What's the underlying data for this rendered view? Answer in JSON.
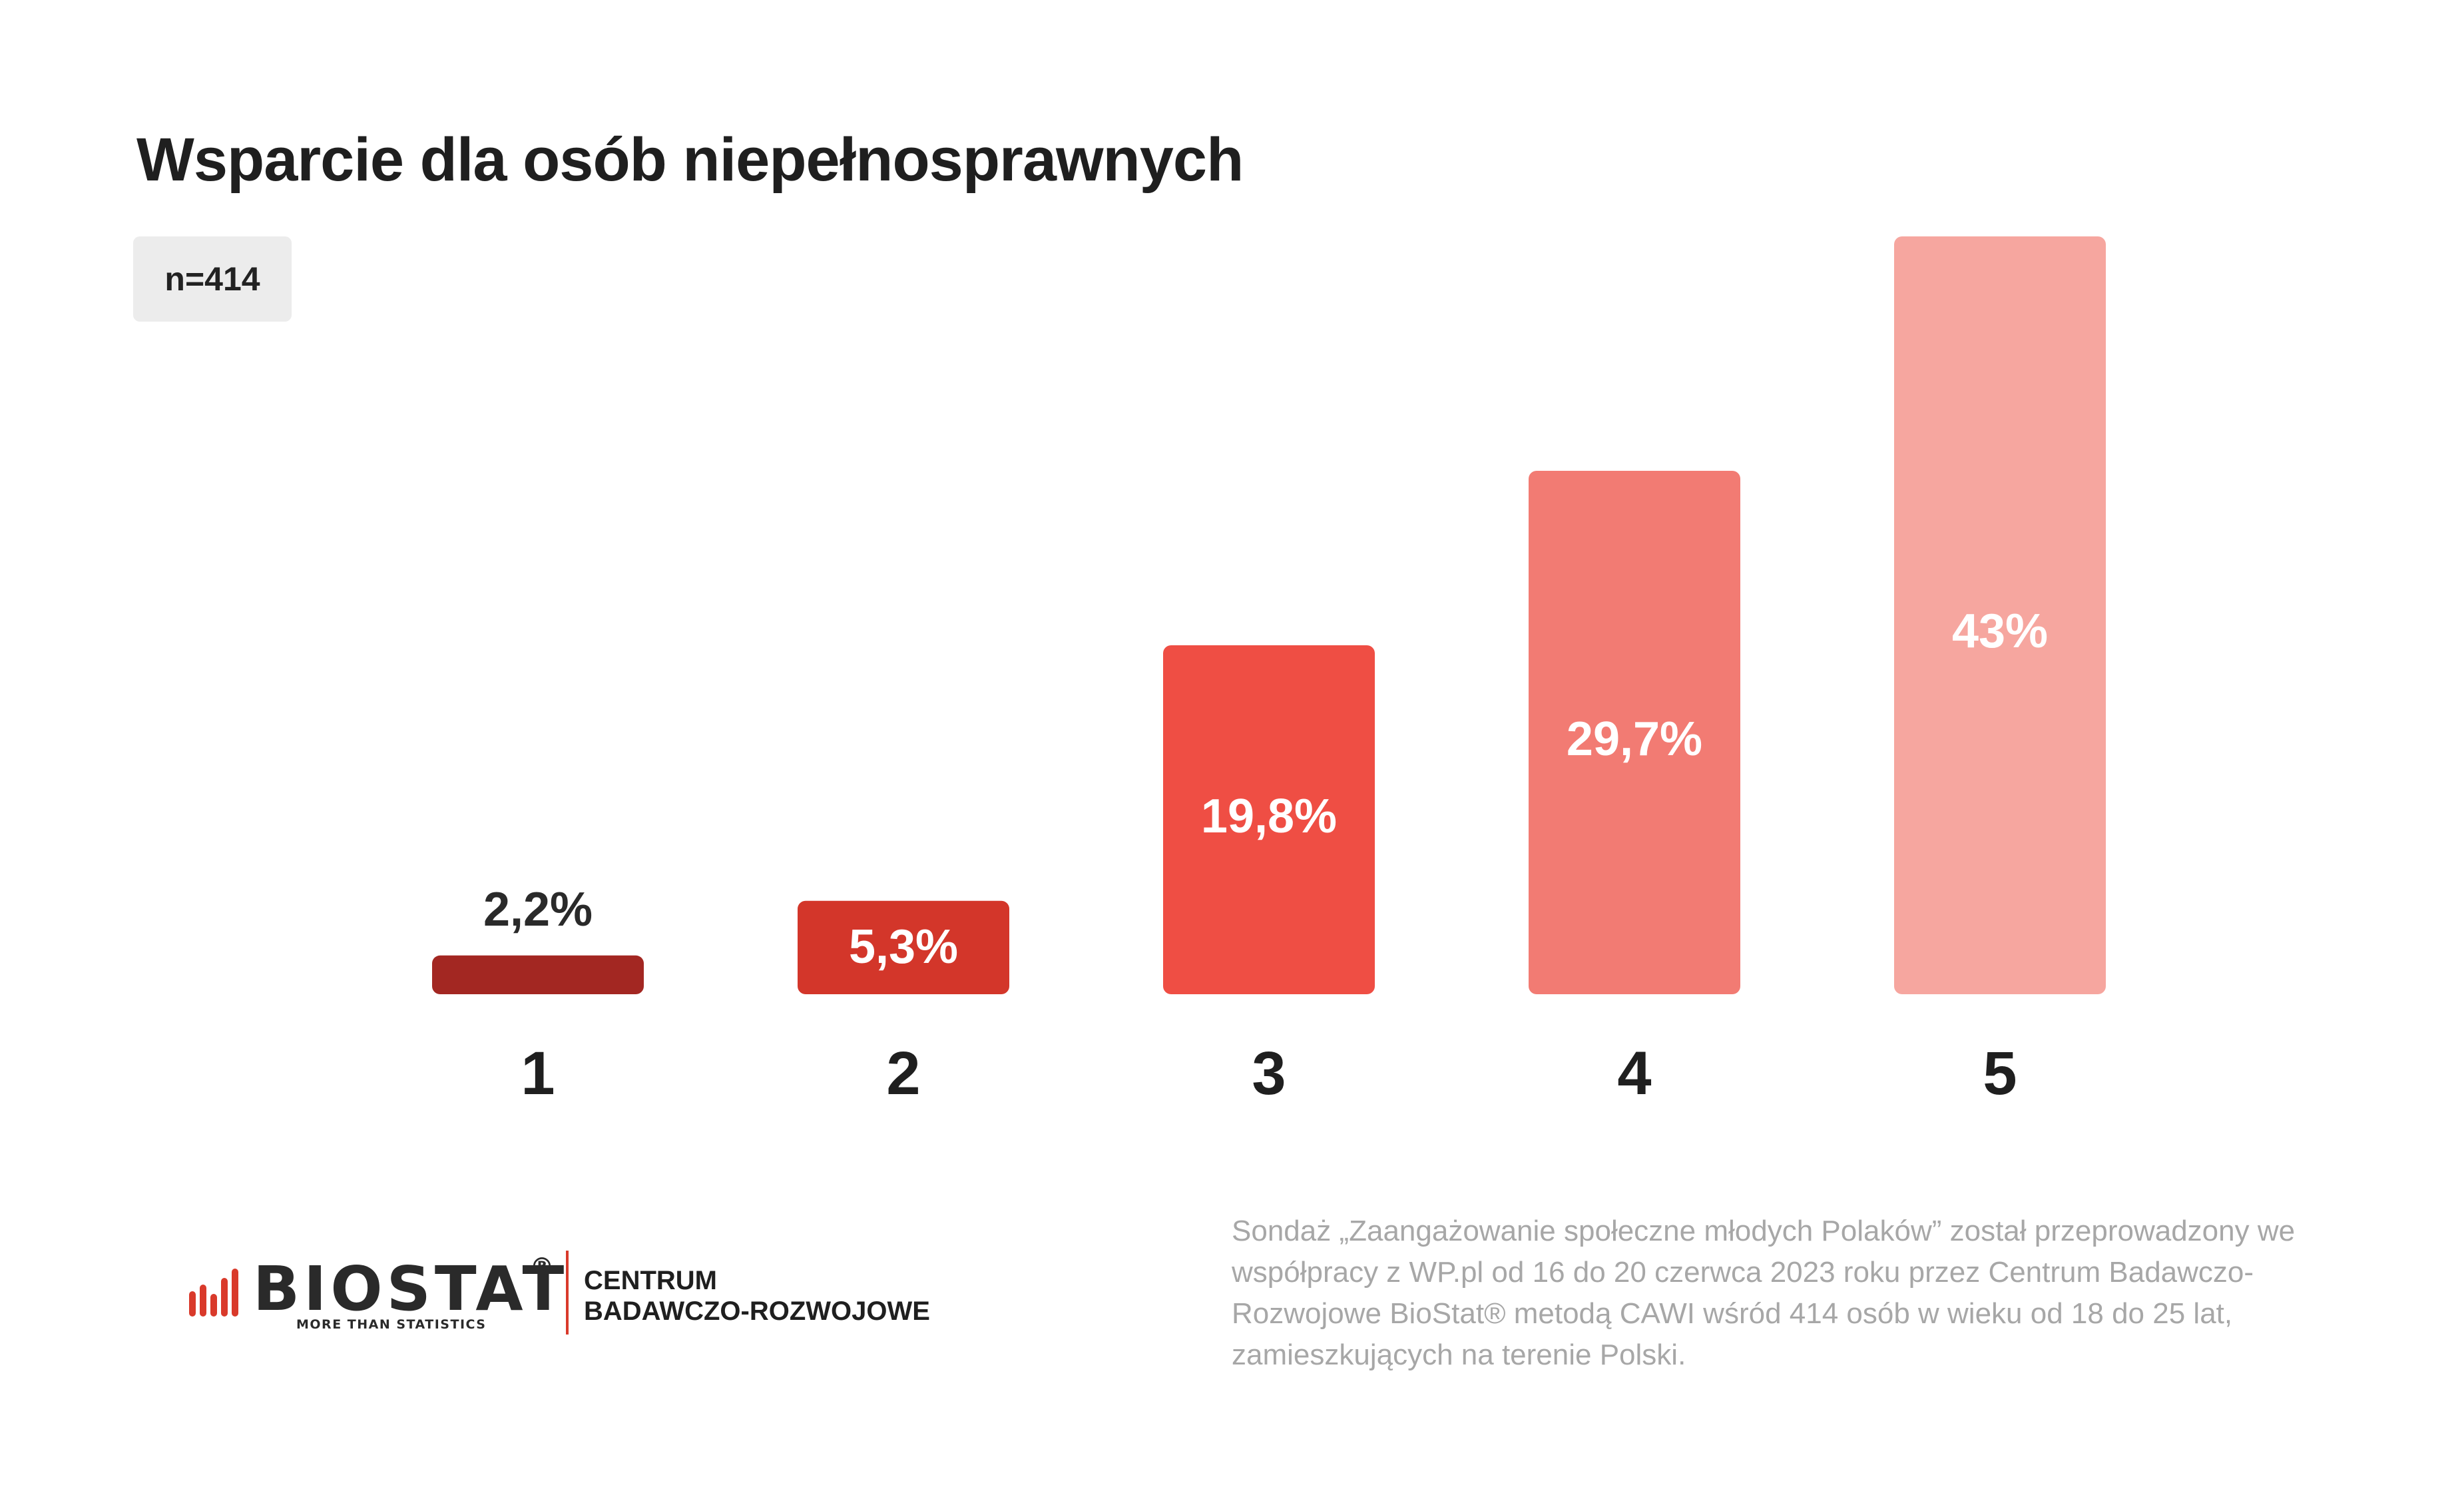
{
  "header": {
    "title": "Wsparcie dla osób niepełnosprawnych",
    "sample_size": "n=414"
  },
  "chart_data": {
    "type": "bar",
    "categories": [
      "1",
      "2",
      "3",
      "4",
      "5"
    ],
    "values": [
      2.2,
      5.3,
      19.8,
      29.7,
      43
    ],
    "value_labels": [
      "2,2%",
      "5,3%",
      "19,8%",
      "29,7%",
      "43%"
    ],
    "colors": [
      "#a32722",
      "#d3362a",
      "#ef4e44",
      "#f27b73",
      "#f6a69f"
    ],
    "label_colors": [
      "#2a2a2a",
      "#ffffff",
      "#ffffff",
      "#ffffff",
      "#ffffff"
    ],
    "title": "Wsparcie dla osób niepełnosprawnych",
    "xlabel": "",
    "ylabel": "",
    "grid": false,
    "legend": "none"
  },
  "footnote": {
    "text": "Sondaż  „Zaangażowanie społeczne młodych Polaków” został przeprowadzony we współpracy z WP.pl od 16 do 20 czerwca 2023 roku przez Centrum Badawczo-Rozwojowe BioStat® metodą CAWI wśród 414 osób w wieku od 18 do 25 lat, zamieszkujących na terenie Polski."
  },
  "branding": {
    "brand_name": "BIOSTAT",
    "registered_mark": "®",
    "tagline": "MORE THAN STATISTICS",
    "center_line1": "CENTRUM",
    "center_line2": "BADAWCZO-ROZWOJOWE",
    "accent_color": "#d93a2b"
  }
}
